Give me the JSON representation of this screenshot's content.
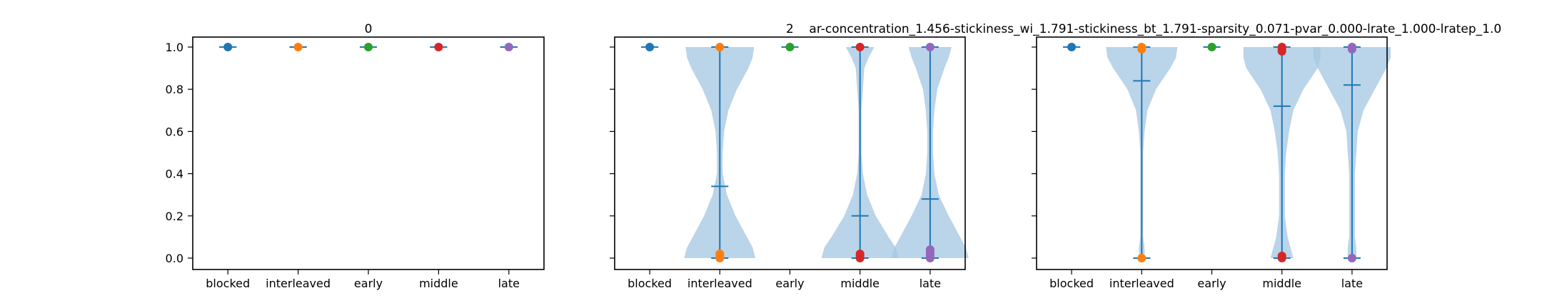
{
  "figure": {
    "suptitle": "2    ar-concentration_1.456-stickiness_wi_1.791-stickiness_bt_1.791-sparsity_0.071-pvar_0.000-lrate_1.000-lratep_1.0"
  },
  "colors": {
    "violin_fill": "#a6c8e3",
    "violin_line": "#1f77b4",
    "blocked": "#1f77b4",
    "interleaved": "#ff7f0e",
    "early": "#2ca02c",
    "middle": "#d62728",
    "late": "#9467bd"
  },
  "chart_data": [
    {
      "type": "violin",
      "title": "0",
      "categories": [
        "blocked",
        "interleaved",
        "early",
        "middle",
        "late"
      ],
      "ylim": [
        -0.05,
        1.05
      ],
      "yticks": [
        "0.0",
        "0.2",
        "0.4",
        "0.6",
        "0.8",
        "1.0"
      ],
      "grid": false,
      "series": [
        {
          "category": "blocked",
          "color_key": "blocked",
          "min": 1.0,
          "max": 1.0,
          "mean": 1.0,
          "points": [
            1.0
          ],
          "density": []
        },
        {
          "category": "interleaved",
          "color_key": "interleaved",
          "min": 1.0,
          "max": 1.0,
          "mean": 1.0,
          "points": [
            1.0
          ],
          "density": []
        },
        {
          "category": "early",
          "color_key": "early",
          "min": 1.0,
          "max": 1.0,
          "mean": 1.0,
          "points": [
            1.0
          ],
          "density": []
        },
        {
          "category": "middle",
          "color_key": "middle",
          "min": 1.0,
          "max": 1.0,
          "mean": 1.0,
          "points": [
            1.0
          ],
          "density": []
        },
        {
          "category": "late",
          "color_key": "late",
          "min": 1.0,
          "max": 1.0,
          "mean": 1.0,
          "points": [
            1.0
          ],
          "density": []
        }
      ]
    },
    {
      "type": "violin",
      "title": "",
      "categories": [
        "blocked",
        "interleaved",
        "early",
        "middle",
        "late"
      ],
      "ylim": [
        -0.05,
        1.05
      ],
      "yticks": [
        "0.0",
        "0.2",
        "0.4",
        "0.6",
        "0.8",
        "1.0"
      ],
      "grid": false,
      "series": [
        {
          "category": "blocked",
          "color_key": "blocked",
          "min": 1.0,
          "max": 1.0,
          "mean": 1.0,
          "points": [
            1.0
          ],
          "density": []
        },
        {
          "category": "interleaved",
          "color_key": "interleaved",
          "min": 0.0,
          "max": 1.0,
          "mean": 0.34,
          "points": [
            0.0,
            0.01,
            0.02,
            1.0
          ],
          "density": [
            [
              0.0,
              0.25
            ],
            [
              0.05,
              0.23
            ],
            [
              0.1,
              0.19
            ],
            [
              0.2,
              0.11
            ],
            [
              0.3,
              0.05
            ],
            [
              0.4,
              0.02
            ],
            [
              0.5,
              0.02
            ],
            [
              0.6,
              0.03
            ],
            [
              0.7,
              0.06
            ],
            [
              0.8,
              0.12
            ],
            [
              0.9,
              0.2
            ],
            [
              0.95,
              0.23
            ],
            [
              1.0,
              0.24
            ]
          ]
        },
        {
          "category": "early",
          "color_key": "early",
          "min": 1.0,
          "max": 1.0,
          "mean": 1.0,
          "points": [
            1.0
          ],
          "density": []
        },
        {
          "category": "middle",
          "color_key": "middle",
          "min": 0.0,
          "max": 1.0,
          "mean": 0.2,
          "points": [
            0.0,
            0.01,
            0.02,
            1.0
          ],
          "density": [
            [
              0.0,
              0.27
            ],
            [
              0.05,
              0.25
            ],
            [
              0.1,
              0.2
            ],
            [
              0.2,
              0.11
            ],
            [
              0.3,
              0.05
            ],
            [
              0.4,
              0.02
            ],
            [
              0.5,
              0.01
            ],
            [
              0.6,
              0.01
            ],
            [
              0.7,
              0.01
            ],
            [
              0.8,
              0.02
            ],
            [
              0.9,
              0.03
            ],
            [
              0.95,
              0.06
            ],
            [
              1.0,
              0.1
            ]
          ]
        },
        {
          "category": "late",
          "color_key": "late",
          "min": 0.0,
          "max": 1.0,
          "mean": 0.28,
          "points": [
            0.0,
            0.01,
            0.02,
            0.03,
            0.04,
            1.0
          ],
          "density": [
            [
              0.0,
              0.27
            ],
            [
              0.05,
              0.25
            ],
            [
              0.1,
              0.21
            ],
            [
              0.2,
              0.13
            ],
            [
              0.3,
              0.06
            ],
            [
              0.4,
              0.03
            ],
            [
              0.5,
              0.02
            ],
            [
              0.6,
              0.02
            ],
            [
              0.7,
              0.03
            ],
            [
              0.8,
              0.05
            ],
            [
              0.9,
              0.1
            ],
            [
              0.95,
              0.13
            ],
            [
              1.0,
              0.15
            ]
          ]
        }
      ]
    },
    {
      "type": "violin",
      "title": "",
      "categories": [
        "blocked",
        "interleaved",
        "early",
        "middle",
        "late"
      ],
      "ylim": [
        -0.05,
        1.05
      ],
      "yticks": [
        "0.0",
        "0.2",
        "0.4",
        "0.6",
        "0.8",
        "1.0"
      ],
      "grid": false,
      "series": [
        {
          "category": "blocked",
          "color_key": "blocked",
          "min": 1.0,
          "max": 1.0,
          "mean": 1.0,
          "points": [
            1.0
          ],
          "density": []
        },
        {
          "category": "interleaved",
          "color_key": "interleaved",
          "min": 0.0,
          "max": 1.0,
          "mean": 0.84,
          "points": [
            0.0,
            0.99,
            1.0
          ],
          "density": [
            [
              0.0,
              0.02
            ],
            [
              0.05,
              0.02
            ],
            [
              0.1,
              0.01
            ],
            [
              0.2,
              0.01
            ],
            [
              0.3,
              0.01
            ],
            [
              0.4,
              0.01
            ],
            [
              0.5,
              0.01
            ],
            [
              0.6,
              0.02
            ],
            [
              0.7,
              0.04
            ],
            [
              0.8,
              0.1
            ],
            [
              0.9,
              0.2
            ],
            [
              0.95,
              0.24
            ],
            [
              1.0,
              0.25
            ]
          ]
        },
        {
          "category": "early",
          "color_key": "early",
          "min": 1.0,
          "max": 1.0,
          "mean": 1.0,
          "points": [
            1.0
          ],
          "density": []
        },
        {
          "category": "middle",
          "color_key": "middle",
          "min": 0.0,
          "max": 1.0,
          "mean": 0.72,
          "points": [
            0.0,
            0.01,
            0.98,
            0.99,
            1.0
          ],
          "density": [
            [
              0.0,
              0.08
            ],
            [
              0.05,
              0.06
            ],
            [
              0.1,
              0.04
            ],
            [
              0.2,
              0.02
            ],
            [
              0.3,
              0.02
            ],
            [
              0.4,
              0.02
            ],
            [
              0.5,
              0.03
            ],
            [
              0.6,
              0.05
            ],
            [
              0.7,
              0.08
            ],
            [
              0.8,
              0.15
            ],
            [
              0.9,
              0.25
            ],
            [
              0.95,
              0.27
            ],
            [
              1.0,
              0.27
            ]
          ]
        },
        {
          "category": "late",
          "color_key": "late",
          "min": 0.0,
          "max": 1.0,
          "mean": 0.82,
          "points": [
            0.0,
            0.99,
            1.0
          ],
          "density": [
            [
              0.0,
              0.03
            ],
            [
              0.05,
              0.03
            ],
            [
              0.1,
              0.02
            ],
            [
              0.2,
              0.02
            ],
            [
              0.3,
              0.02
            ],
            [
              0.4,
              0.02
            ],
            [
              0.5,
              0.03
            ],
            [
              0.6,
              0.04
            ],
            [
              0.7,
              0.08
            ],
            [
              0.8,
              0.16
            ],
            [
              0.9,
              0.24
            ],
            [
              0.95,
              0.27
            ],
            [
              1.0,
              0.27
            ]
          ]
        }
      ]
    }
  ]
}
